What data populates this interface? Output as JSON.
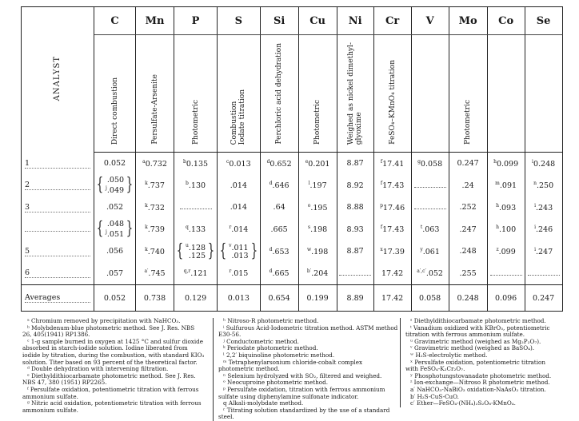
{
  "table": {
    "analyst_header": "ANALYST",
    "columns": [
      {
        "element": "C",
        "method": "Direct combustion"
      },
      {
        "element": "Mn",
        "method": "Persulfate-Arsenite"
      },
      {
        "element": "P",
        "method": "Photometric"
      },
      {
        "element": "S",
        "method": "Combustion\nIodate titration"
      },
      {
        "element": "Si",
        "method": "Perchloric acid dehydration"
      },
      {
        "element": "Cu",
        "method": "Photometric"
      },
      {
        "element": "Ni",
        "method": "Weighed as nickel dimethyl-\nglyoxime"
      },
      {
        "element": "Cr",
        "method": "FeSO₄–KMnO₄ titration"
      },
      {
        "element": "V",
        "method": ""
      },
      {
        "element": "Mo",
        "method": "Photometric"
      },
      {
        "element": "Co",
        "method": ""
      },
      {
        "element": "Se",
        "method": ""
      }
    ],
    "rows": [
      {
        "analyst": "1",
        "cells": [
          {
            "v": "0.052"
          },
          {
            "s": "a",
            "v": "0.732"
          },
          {
            "s": "b",
            "v": "0.135"
          },
          {
            "s": "c",
            "v": "0.013"
          },
          {
            "s": "d",
            "v": "0.652"
          },
          {
            "s": "e",
            "v": "0.201"
          },
          {
            "v": "8.87"
          },
          {
            "s": "f",
            "v": "17.41"
          },
          {
            "s": "g",
            "v": "0.058"
          },
          {
            "v": "0.247"
          },
          {
            "s": "h",
            "v": "0.099"
          },
          {
            "s": "i",
            "v": "0.248"
          }
        ]
      },
      {
        "analyst": "2",
        "cells": [
          {
            "pair": [
              {
                "v": ".050"
              },
              {
                "s": "j",
                "v": ".049"
              }
            ]
          },
          {
            "s": "k",
            "v": ".737"
          },
          {
            "s": "b",
            "v": ".130"
          },
          {
            "v": ".014"
          },
          {
            "s": "d",
            "v": ".646"
          },
          {
            "s": "l",
            "v": ".197"
          },
          {
            "v": "8.92"
          },
          {
            "s": "f",
            "v": "17.43"
          },
          null,
          {
            "v": ".24"
          },
          {
            "s": "m",
            "v": ".091"
          },
          {
            "s": "n",
            "v": ".250"
          }
        ]
      },
      {
        "analyst": "3",
        "cells": [
          {
            "v": ".052"
          },
          {
            "s": "k",
            "v": ".732"
          },
          null,
          {
            "v": ".014"
          },
          {
            "v": ".64"
          },
          {
            "s": "o",
            "v": ".195"
          },
          {
            "v": "8.88"
          },
          {
            "s": "p",
            "v": "17.46"
          },
          null,
          {
            "v": ".252"
          },
          {
            "s": "h",
            "v": ".093"
          },
          {
            "s": "i",
            "v": ".243"
          }
        ]
      },
      {
        "analyst": "",
        "cells": [
          {
            "pair": [
              {
                "v": ".048"
              },
              {
                "s": "j",
                "v": ".051"
              }
            ]
          },
          {
            "s": "k",
            "v": ".739"
          },
          {
            "s": "q",
            "v": ".133"
          },
          {
            "s": "r",
            "v": ".014"
          },
          {
            "v": ".665"
          },
          {
            "s": "s",
            "v": ".198"
          },
          {
            "v": "8.93"
          },
          {
            "s": "f",
            "v": "17.43"
          },
          {
            "s": "t",
            "v": ".063"
          },
          {
            "v": ".247"
          },
          {
            "s": "h",
            "v": ".100"
          },
          {
            "s": "i",
            "v": ".246"
          }
        ]
      },
      {
        "analyst": "5",
        "cells": [
          {
            "v": ".056"
          },
          {
            "s": "k",
            "v": ".740"
          },
          {
            "pair": [
              {
                "s": "u",
                "v": ".128"
              },
              {
                "v": ".125"
              }
            ]
          },
          {
            "pair": [
              {
                "s": "v",
                "v": ".011"
              },
              {
                "v": ".013"
              }
            ]
          },
          {
            "s": "d",
            "v": ".653"
          },
          {
            "s": "w",
            "v": ".198"
          },
          {
            "v": "8.87"
          },
          {
            "s": "x",
            "v": "17.39"
          },
          {
            "s": "y",
            "v": ".061"
          },
          {
            "v": ".248"
          },
          {
            "s": "z",
            "v": ".099"
          },
          {
            "s": "i",
            "v": ".247"
          }
        ]
      },
      {
        "analyst": "6",
        "cells": [
          {
            "v": ".057"
          },
          {
            "s": "a′",
            "v": ".745"
          },
          {
            "s": "q,r",
            "v": ".121"
          },
          {
            "s": "r",
            "v": ".015"
          },
          {
            "s": "d",
            "v": ".665"
          },
          {
            "s": "b′",
            "v": ".204"
          },
          null,
          {
            "v": "17.42"
          },
          {
            "s": "a′,c′",
            "v": ".052"
          },
          {
            "v": ".255"
          },
          null,
          null
        ]
      }
    ],
    "averages": {
      "label": "Averages",
      "values": [
        "0.052",
        "0.738",
        "0.129",
        "0.013",
        "0.654",
        "0.199",
        "8.89",
        "17.42",
        "0.058",
        "0.248",
        "0.096",
        "0.247"
      ]
    }
  },
  "footnotes": [
    [
      "ᵃ Chromium removed by precipitation with NaHCO₃.",
      "ᵇ Molybdenum-blue photometric method. See J. Res. NBS 26, 405(1941) RP1386.",
      "ᶜ 1-g sample burned in oxygen at 1425 °C and sulfur dioxide absorbed in starch-iodide solution. Iodine liberated from iodide by titration, during the combustion, with standard KIO₃ solution. Titer based on 93 percent of the theoretical factor.",
      "ᵈ Double dehydration with intervening filtration.",
      "ᵉ Diethyldithiocarbamate photometric method. See J. Res. NBS 47, 380 (1951) RP2265.",
      "ᶠ Persulfate oxidation, potentiometric titration with ferrous ammonium sulfate.",
      "ᵍ Nitric acid oxidation, potentiometric titration with ferrous ammonium sulfate."
    ],
    [
      "ʰ Nitroso-R photometric method.",
      "ⁱ Sulfurous Acid-Iodometric titration method. ASTM method E30-56.",
      "ʲ Conductometric method.",
      "ᵏ Periodate photometric method.",
      "ˡ 2,2′ biquinoline photometric method.",
      "ᵐ Tetraphenylarsonium chloride-cobalt complex photometric method.",
      "ⁿ Selenium hydrolyzed with SO₂, filtered and weighed.",
      "ᵒ Neocuproine photometric method.",
      "ᵖ Persulfate oxidation, titration with ferrous ammonium sulfate using diphenylamine sulfonate indicator.",
      "q Alkali-molybdate method.",
      "ʳ Titrating solution standardized by the use of a standard steel."
    ],
    [
      "ˢ Diethyldithiocarbamate photometric method.",
      "ᵗ Vanadium oxidized with KBrO₃, potentiometric titration with ferrous ammonium sulfate.",
      "ᵘ Gravimetric method (weighed as Mg₂P₂O₇).",
      "ᵛ Gravimetric method (weighed as BaSO₄).",
      "ʷ H₂S-electrolytic method.",
      "ˣ Persulfate oxidation, potentiometric titration with FeSO₄-K₂Cr₂O₇.",
      "ʸ Phosphotungstovanadate photometric method.",
      "ᶻ Ion-exchange—Nitroso R photometric method.",
      "a′ NaHCO₃-NaBiO₃ oxidation-NaAsO₂ titration.",
      "b′ H₂S-CuS-CuO.",
      "c′ Ether—FeSO₄-(NH₄)₂S₂O₈-KMnO₄."
    ]
  ]
}
